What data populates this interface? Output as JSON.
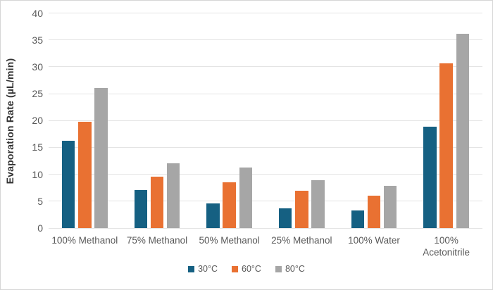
{
  "chart_data": {
    "type": "bar",
    "title": "",
    "ylabel": "Evaporation Rate (µL/min)",
    "xlabel": "",
    "ylim": [
      0,
      40
    ],
    "ytick_step": 5,
    "grid": true,
    "legend_position": "bottom-center",
    "categories": [
      "100% Methanol",
      "75% Methanol",
      "50% Methanol",
      "25% Methanol",
      "100% Water",
      "100% Acetonitrile"
    ],
    "series": [
      {
        "name": "30°C",
        "color": "#156082",
        "values": [
          16.2,
          7.1,
          4.6,
          3.7,
          3.3,
          18.9
        ]
      },
      {
        "name": "60°C",
        "color": "#E97132",
        "values": [
          19.8,
          9.6,
          8.5,
          6.9,
          6.0,
          30.7
        ]
      },
      {
        "name": "80°C",
        "color": "#A6A6A6",
        "values": [
          26.1,
          12.0,
          11.3,
          8.9,
          7.8,
          36.1
        ]
      }
    ],
    "colors": {
      "background": "#ffffff",
      "gridline": "#e4e4e4",
      "tick_text": "#595959",
      "axis_title_text": "#333333",
      "border": "#d6d6d6"
    }
  }
}
